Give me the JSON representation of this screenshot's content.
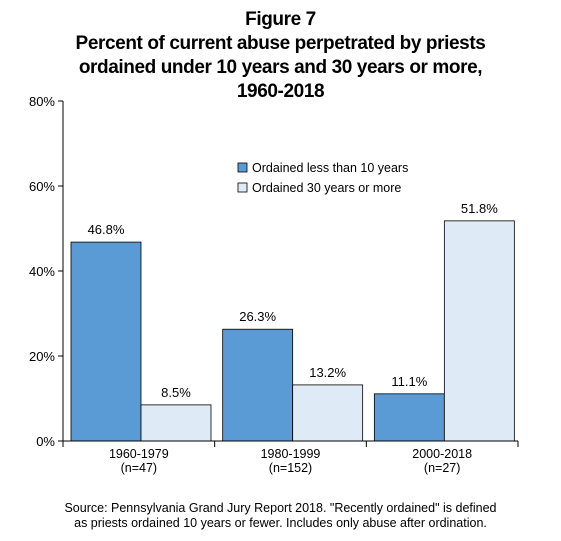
{
  "title_lines": [
    "Figure 7",
    "Percent of current abuse perpetrated by priests",
    "ordained under 10 years and 30 years or more,",
    "1960-2018"
  ],
  "source_lines": [
    "Source: Pennsylvania Grand Jury Report 2018.  \"Recently ordained\" is defined",
    "as priests ordained 10 years or fewer.  Includes only abuse after ordination."
  ],
  "colors": {
    "series1": "#5b9bd5",
    "series2": "#deebf7",
    "stroke": "#000000"
  },
  "chart_data": {
    "type": "bar",
    "title": "Figure 7 Percent of current abuse perpetrated by priests ordained under 10 years and 30 years or more, 1960-2018",
    "categories": [
      "1960-1979",
      "1980-1999",
      "2000-2018"
    ],
    "category_counts": [
      "(n=47)",
      "(n=152)",
      "(n=27)"
    ],
    "series": [
      {
        "name": "Ordained less than 10 years",
        "values": [
          46.8,
          26.3,
          11.1
        ],
        "labels": [
          "46.8%",
          "26.3%",
          "11.1%"
        ]
      },
      {
        "name": "Ordained 30 years or more",
        "values": [
          8.5,
          13.2,
          51.8
        ],
        "labels": [
          "8.5%",
          "13.2%",
          "51.8%"
        ]
      }
    ],
    "ylim": [
      0,
      80
    ],
    "yticks": [
      0,
      20,
      40,
      60,
      80
    ],
    "ytick_labels": [
      "0%",
      "20%",
      "40%",
      "60%",
      "80%"
    ],
    "xlabel": "",
    "ylabel": "",
    "grid": false,
    "legend_position": "upper-center"
  }
}
